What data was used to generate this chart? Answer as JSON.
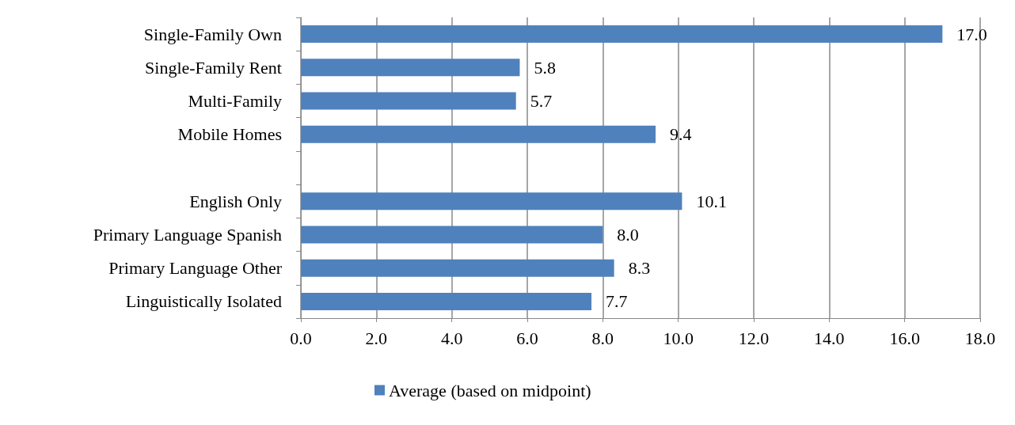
{
  "chart_data": {
    "type": "bar",
    "orientation": "horizontal",
    "categories": [
      "Single-Family Own",
      "Single-Family Rent",
      "Multi-Family",
      "Mobile Homes",
      null,
      "English Only",
      "Primary Language Spanish",
      "Primary Language Other",
      "Linguistically Isolated"
    ],
    "series": [
      {
        "name": "Average (based on midpoint)",
        "color": "#4f81bd",
        "values": [
          17.0,
          5.8,
          5.7,
          9.4,
          null,
          10.1,
          8.0,
          8.3,
          7.7
        ],
        "value_labels": [
          "17.0",
          "5.8",
          "5.7",
          "9.4",
          null,
          "10.1",
          "8.0",
          "8.3",
          "7.7"
        ]
      }
    ],
    "xlim": [
      0,
      18
    ],
    "xticks": [
      {
        "value": 0,
        "label": "0.0"
      },
      {
        "value": 2,
        "label": "2.0"
      },
      {
        "value": 4,
        "label": "4.0"
      },
      {
        "value": 6,
        "label": "6.0"
      },
      {
        "value": 8,
        "label": "8.0"
      },
      {
        "value": 10,
        "label": "10.0"
      },
      {
        "value": 12,
        "label": "12.0"
      },
      {
        "value": 14,
        "label": "14.0"
      },
      {
        "value": 16,
        "label": "16.0"
      },
      {
        "value": 18,
        "label": "18.0"
      }
    ],
    "grid": "x",
    "legend": "bottom"
  }
}
